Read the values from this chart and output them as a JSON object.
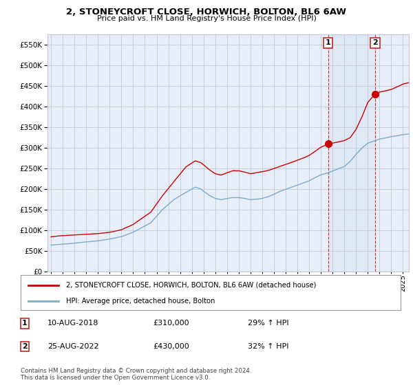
{
  "title": "2, STONEYCROFT CLOSE, HORWICH, BOLTON, BL6 6AW",
  "subtitle": "Price paid vs. HM Land Registry's House Price Index (HPI)",
  "legend_line1": "2, STONEYCROFT CLOSE, HORWICH, BOLTON, BL6 6AW (detached house)",
  "legend_line2": "HPI: Average price, detached house, Bolton",
  "marker1_date": "10-AUG-2018",
  "marker1_price": "£310,000",
  "marker1_hpi": "29% ↑ HPI",
  "marker1_year": 2018.62,
  "marker1_value": 310000,
  "marker2_date": "25-AUG-2022",
  "marker2_price": "£430,000",
  "marker2_hpi": "32% ↑ HPI",
  "marker2_year": 2022.62,
  "marker2_value": 430000,
  "copyright": "Contains HM Land Registry data © Crown copyright and database right 2024.\nThis data is licensed under the Open Government Licence v3.0.",
  "red_color": "#cc0000",
  "blue_color": "#7aaacc",
  "background_plot": "#e8eef8",
  "background_fig": "#ffffff",
  "grid_color": "#c0c8d8",
  "ylim": [
    0,
    575000
  ],
  "xlim": [
    1994.7,
    2025.5
  ]
}
